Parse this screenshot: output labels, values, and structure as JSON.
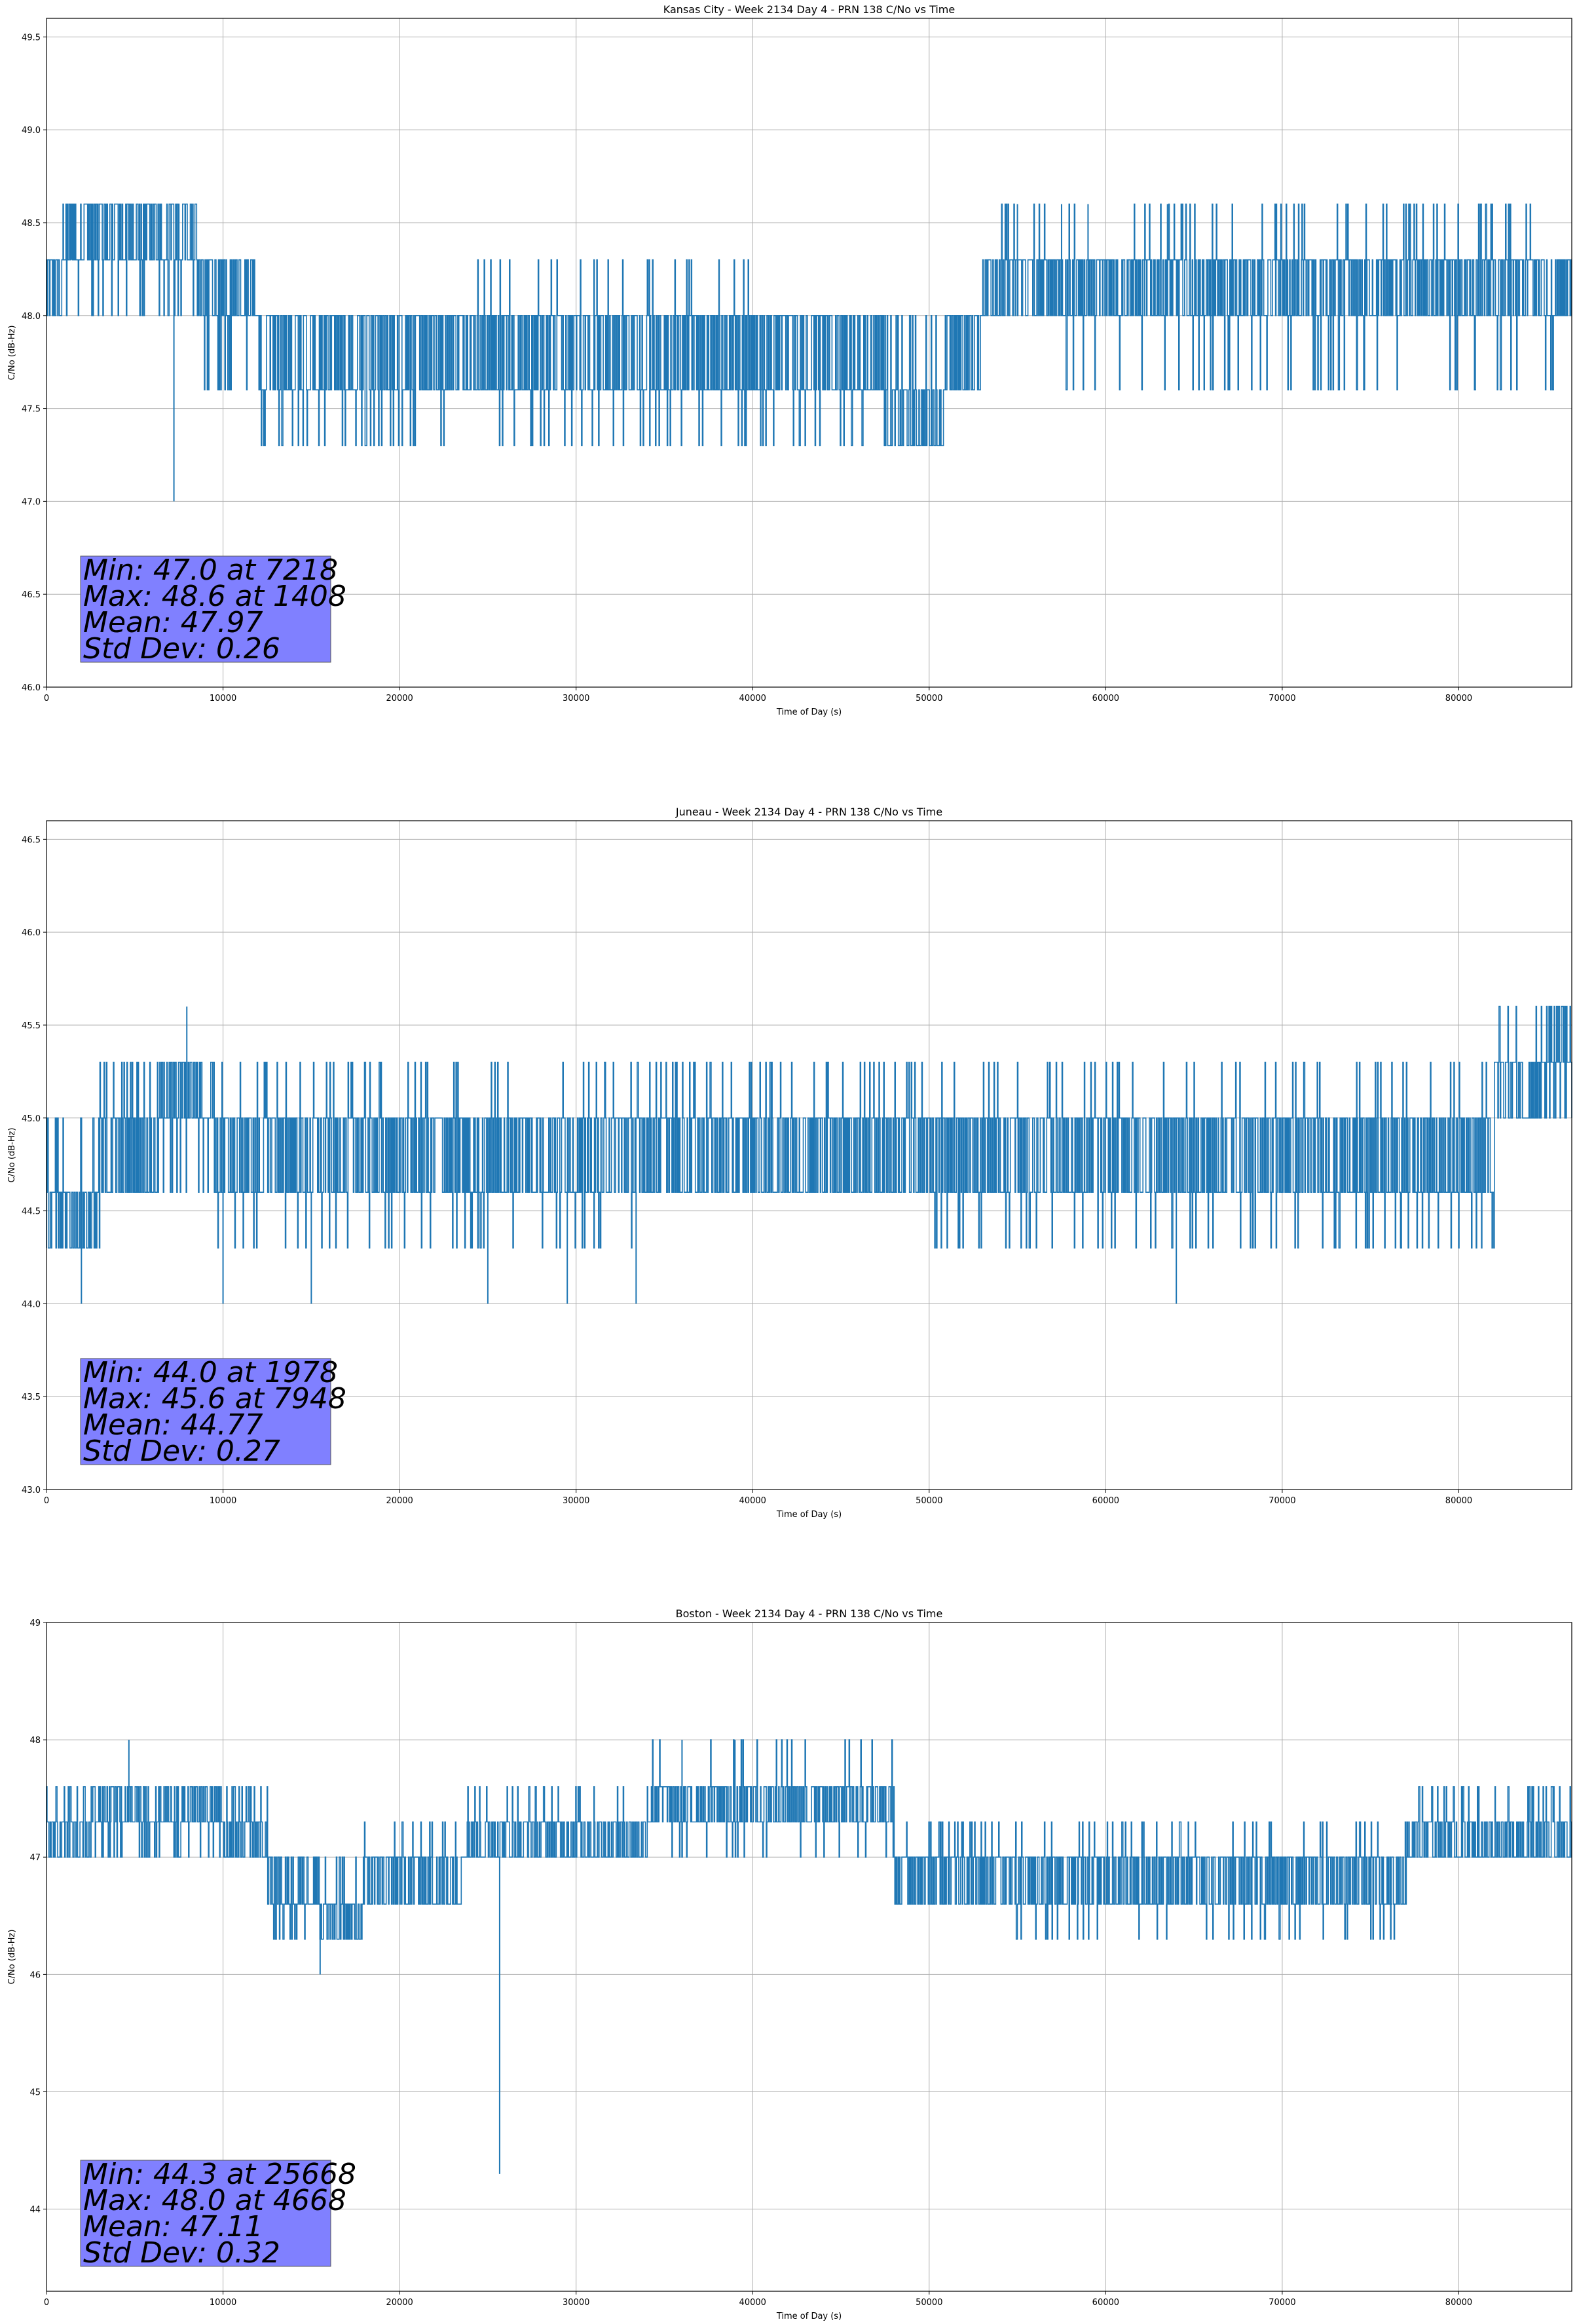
{
  "chart_data": [
    {
      "type": "line",
      "title": "Kansas City - Week 2134 Day 4 - PRN 138 C/No vs Time",
      "xlabel": "Time of Day (s)",
      "ylabel": "C/No (dB-Hz)",
      "xlim": [
        0,
        86400
      ],
      "ylim": [
        46.0,
        49.6
      ],
      "xticks": [
        0,
        10000,
        20000,
        30000,
        40000,
        50000,
        60000,
        70000,
        80000
      ],
      "yticks": [
        "46.0",
        "46.5",
        "47.0",
        "47.5",
        "48.0",
        "48.5",
        "49.0",
        "49.5"
      ],
      "grid": true,
      "color": "#1f77b4",
      "stats": [
        "Min: 47.0 at 7218",
        "Max: 48.6 at 1408",
        "Mean: 47.97",
        "Std Dev: 0.26"
      ],
      "stats_box_color": "#8080ff",
      "series": [
        {
          "values_profile": [
            {
              "x": [
                0,
                800
              ],
              "levels": [
                48.0,
                48.3
              ]
            },
            {
              "x": [
                800,
                8500
              ],
              "levels": [
                48.3,
                48.6,
                48.0
              ]
            },
            {
              "x": [
                8500,
                12000
              ],
              "levels": [
                48.0,
                48.3,
                47.6
              ]
            },
            {
              "x": [
                12000,
                24000
              ],
              "levels": [
                47.6,
                48.0,
                47.3
              ]
            },
            {
              "x": [
                24000,
                40000
              ],
              "levels": [
                47.6,
                48.0,
                48.3,
                47.3
              ]
            },
            {
              "x": [
                40000,
                47500
              ],
              "levels": [
                47.6,
                48.0,
                47.3
              ]
            },
            {
              "x": [
                47500,
                51000
              ],
              "levels": [
                47.3,
                47.6,
                48.0
              ]
            },
            {
              "x": [
                51000,
                53000
              ],
              "levels": [
                47.6,
                48.0
              ]
            },
            {
              "x": [
                53000,
                86400
              ],
              "levels": [
                48.0,
                48.3,
                47.6,
                48.6
              ]
            }
          ]
        },
        {
          "extremes": [
            {
              "x": 7218,
              "y": 47.0
            },
            {
              "x": 1408,
              "y": 48.6
            },
            {
              "x": 55000,
              "y": 48.6
            },
            {
              "x": 57500,
              "y": 48.6
            },
            {
              "x": 59000,
              "y": 48.6
            },
            {
              "x": 63500,
              "y": 48.6
            }
          ]
        }
      ]
    },
    {
      "type": "line",
      "title": "Juneau - Week 2134 Day 4 - PRN 138 C/No vs Time",
      "xlabel": "Time of Day (s)",
      "ylabel": "C/No (dB-Hz)",
      "xlim": [
        0,
        86400
      ],
      "ylim": [
        43.0,
        46.6
      ],
      "xticks": [
        0,
        10000,
        20000,
        30000,
        40000,
        50000,
        60000,
        70000,
        80000
      ],
      "yticks": [
        "43.0",
        "43.5",
        "44.0",
        "44.5",
        "45.0",
        "45.5",
        "46.0",
        "46.5"
      ],
      "grid": true,
      "color": "#1f77b4",
      "stats": [
        "Min: 44.0 at 1978",
        "Max: 45.6 at 7948",
        "Mean: 44.77",
        "Std Dev: 0.27"
      ],
      "stats_box_color": "#8080ff",
      "series": [
        {
          "values_profile": [
            {
              "x": [
                0,
                3000
              ],
              "levels": [
                44.3,
                44.6,
                45.0
              ]
            },
            {
              "x": [
                3000,
                6500
              ],
              "levels": [
                44.6,
                45.0,
                45.3
              ]
            },
            {
              "x": [
                6500,
                9500
              ],
              "levels": [
                45.0,
                45.3,
                44.6
              ]
            },
            {
              "x": [
                9500,
                33500
              ],
              "levels": [
                44.6,
                45.0,
                44.3,
                45.3
              ]
            },
            {
              "x": [
                33500,
                50000
              ],
              "levels": [
                44.6,
                45.0,
                45.3
              ]
            },
            {
              "x": [
                50000,
                82000
              ],
              "levels": [
                44.6,
                45.0,
                44.3,
                45.3
              ]
            },
            {
              "x": [
                82000,
                85000
              ],
              "levels": [
                45.0,
                45.3,
                45.6
              ]
            },
            {
              "x": [
                85000,
                86400
              ],
              "levels": [
                45.3,
                45.6,
                45.0
              ]
            }
          ]
        },
        {
          "extremes": [
            {
              "x": 1978,
              "y": 44.0
            },
            {
              "x": 7948,
              "y": 45.6
            },
            {
              "x": 10000,
              "y": 44.0
            },
            {
              "x": 15000,
              "y": 44.0
            },
            {
              "x": 25000,
              "y": 44.0
            },
            {
              "x": 29500,
              "y": 44.0
            },
            {
              "x": 33400,
              "y": 44.0
            },
            {
              "x": 64000,
              "y": 44.0
            }
          ]
        }
      ]
    },
    {
      "type": "line",
      "title": "Boston - Week 2134 Day 4 - PRN 138 C/No vs Time",
      "xlabel": "Time of Day (s)",
      "ylabel": "C/No (dB-Hz)",
      "xlim": [
        0,
        86400
      ],
      "ylim": [
        43.3,
        49.0
      ],
      "xticks": [
        0,
        10000,
        20000,
        30000,
        40000,
        50000,
        60000,
        70000,
        80000
      ],
      "yticks": [
        "44",
        "45",
        "46",
        "47",
        "48",
        "49"
      ],
      "grid": true,
      "color": "#1f77b4",
      "stats": [
        "Min: 44.3 at 25668",
        "Max: 48.0 at 4668",
        "Mean: 47.11",
        "Std Dev: 0.32"
      ],
      "stats_box_color": "#8080ff",
      "series": [
        {
          "values_profile": [
            {
              "x": [
                0,
                2500
              ],
              "levels": [
                47.0,
                47.3,
                47.6
              ]
            },
            {
              "x": [
                2500,
                10000
              ],
              "levels": [
                47.3,
                47.6,
                47.0
              ]
            },
            {
              "x": [
                10000,
                12500
              ],
              "levels": [
                47.0,
                47.3,
                47.6
              ]
            },
            {
              "x": [
                12500,
                15500
              ],
              "levels": [
                46.6,
                47.0,
                46.3
              ]
            },
            {
              "x": [
                15500,
                18000
              ],
              "levels": [
                46.3,
                46.6,
                47.0
              ]
            },
            {
              "x": [
                18000,
                23500
              ],
              "levels": [
                46.6,
                47.0,
                47.3
              ]
            },
            {
              "x": [
                23500,
                34000
              ],
              "levels": [
                47.0,
                47.3,
                47.6
              ]
            },
            {
              "x": [
                34000,
                48000
              ],
              "levels": [
                47.3,
                47.6,
                48.0,
                47.0
              ]
            },
            {
              "x": [
                48000,
                54000
              ],
              "levels": [
                46.6,
                47.0,
                47.3
              ]
            },
            {
              "x": [
                54000,
                77000
              ],
              "levels": [
                46.6,
                47.0,
                46.3,
                47.3
              ]
            },
            {
              "x": [
                77000,
                86400
              ],
              "levels": [
                47.0,
                47.3,
                47.6
              ]
            }
          ]
        },
        {
          "extremes": [
            {
              "x": 25668,
              "y": 44.3
            },
            {
              "x": 4668,
              "y": 48.0
            },
            {
              "x": 15500,
              "y": 46.0
            },
            {
              "x": 36000,
              "y": 48.0
            },
            {
              "x": 39000,
              "y": 48.0
            }
          ]
        }
      ]
    }
  ]
}
